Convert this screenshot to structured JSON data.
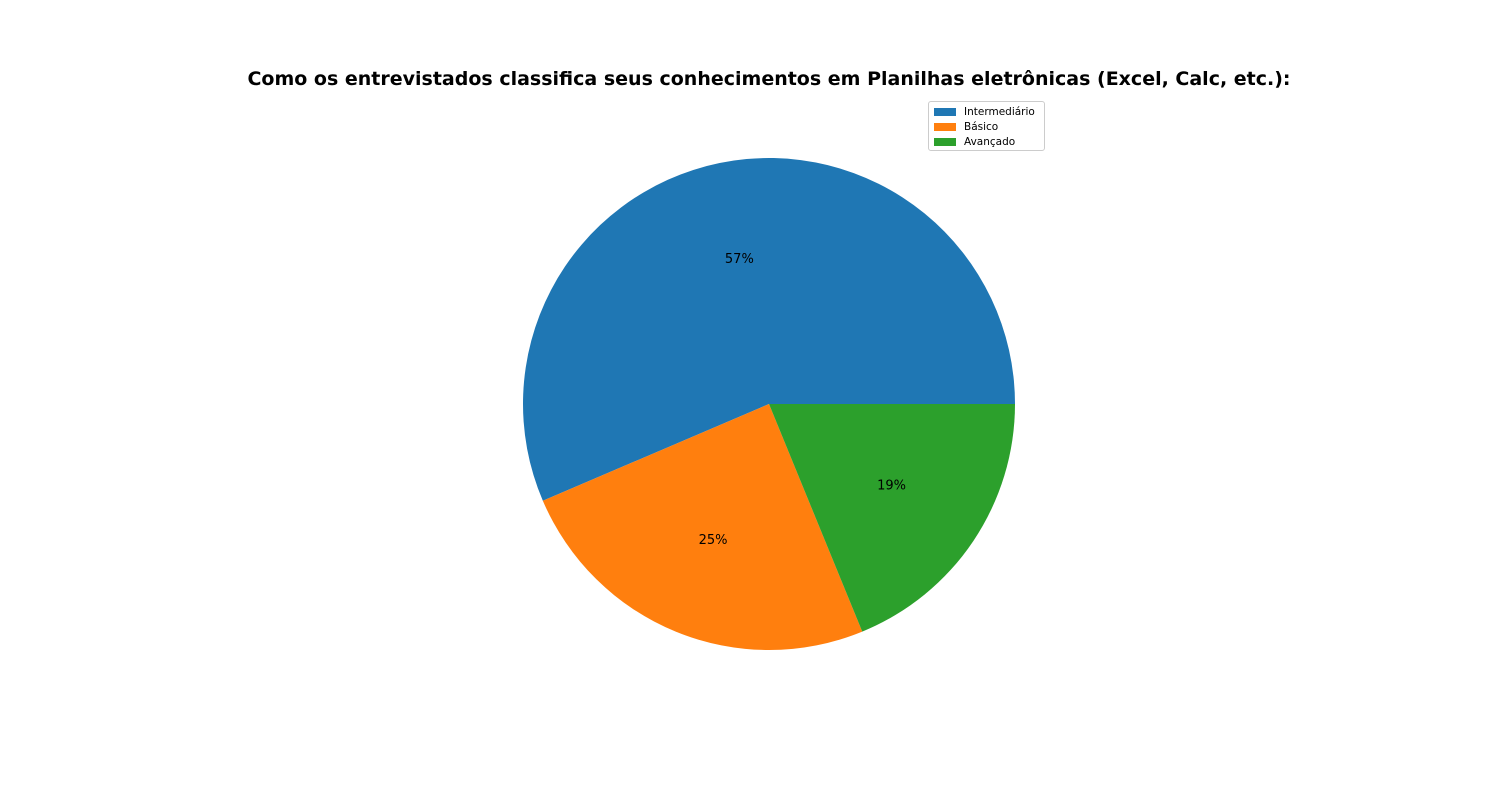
{
  "chart_data": {
    "type": "pie",
    "title": "Como os entrevistados classifica seus conhecimentos em Planilhas eletrônicas (Excel, Calc, etc.):",
    "categories": [
      "Intermediário",
      "Básico",
      "Avançado"
    ],
    "values": [
      57,
      25,
      19
    ],
    "labels": [
      "57%",
      "25%",
      "19%"
    ],
    "colors": [
      "#1f77b4",
      "#ff7f0e",
      "#2ca02c"
    ],
    "start_angle_deg": 0,
    "direction": "counterclockwise",
    "legend_position": "upper-right"
  }
}
